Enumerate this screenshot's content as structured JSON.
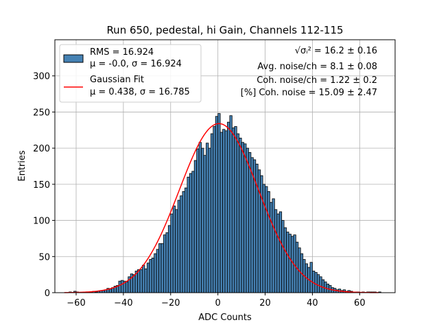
{
  "chart_data": {
    "type": "bar",
    "title": "Run 650, pedestal, hi Gain, Channels 112-115",
    "xlabel": "ADC Counts",
    "ylabel": "Entries",
    "xlim": [
      -69,
      75
    ],
    "ylim": [
      0,
      350
    ],
    "xticks": [
      -60,
      -40,
      -20,
      0,
      20,
      40,
      60
    ],
    "yticks": [
      0,
      50,
      100,
      150,
      200,
      250,
      300
    ],
    "grid": true,
    "bar_color": "#4682b4",
    "fit_color": "#ff0000",
    "bin_start": -63,
    "bin_width": 1,
    "histogram_values": [
      1,
      0,
      2,
      1,
      0,
      0,
      1,
      0,
      1,
      1,
      2,
      1,
      2,
      3,
      3,
      4,
      6,
      5,
      7,
      9,
      10,
      16,
      17,
      16,
      15,
      22,
      26,
      25,
      30,
      32,
      32,
      38,
      33,
      41,
      46,
      48,
      54,
      60,
      68,
      68,
      80,
      83,
      93,
      109,
      120,
      115,
      128,
      134,
      140,
      145,
      160,
      165,
      168,
      183,
      199,
      208,
      200,
      190,
      207,
      200,
      220,
      230,
      244,
      248,
      222,
      226,
      224,
      236,
      245,
      228,
      230,
      220,
      214,
      208,
      206,
      200,
      194,
      187,
      184,
      178,
      170,
      162,
      150,
      147,
      140,
      125,
      130,
      115,
      109,
      112,
      100,
      90,
      84,
      81,
      78,
      80,
      70,
      62,
      54,
      46,
      40,
      35,
      42,
      30,
      28,
      25,
      22,
      18,
      15,
      12,
      10,
      7,
      6,
      4,
      5,
      3,
      4,
      2,
      3,
      2,
      1,
      1,
      1,
      0,
      1,
      0,
      1,
      1,
      1,
      1,
      0,
      1
    ],
    "fit": {
      "amplitude": 234,
      "mu": 0.438,
      "sigma": 16.785,
      "x_range": [
        -65,
        68
      ]
    },
    "legend": {
      "position": "top-left",
      "entries": [
        {
          "line1": "RMS = 16.924",
          "line2": "μ = -0.0, σ = 16.924"
        },
        {
          "line1": "Gaussian Fit",
          "line2": "μ = 0.438, σ = 16.785"
        }
      ]
    },
    "annotations": {
      "sigma_label": "√σᵢ² = 16.2 ± 0.16",
      "avg_noise": "Avg. noise/ch = 8.1 ± 0.08",
      "coh_noise": "Coh. noise/ch = 1.22 ± 0.2",
      "coh_pct": "[%] Coh. noise = 15.09 ± 2.47"
    }
  }
}
